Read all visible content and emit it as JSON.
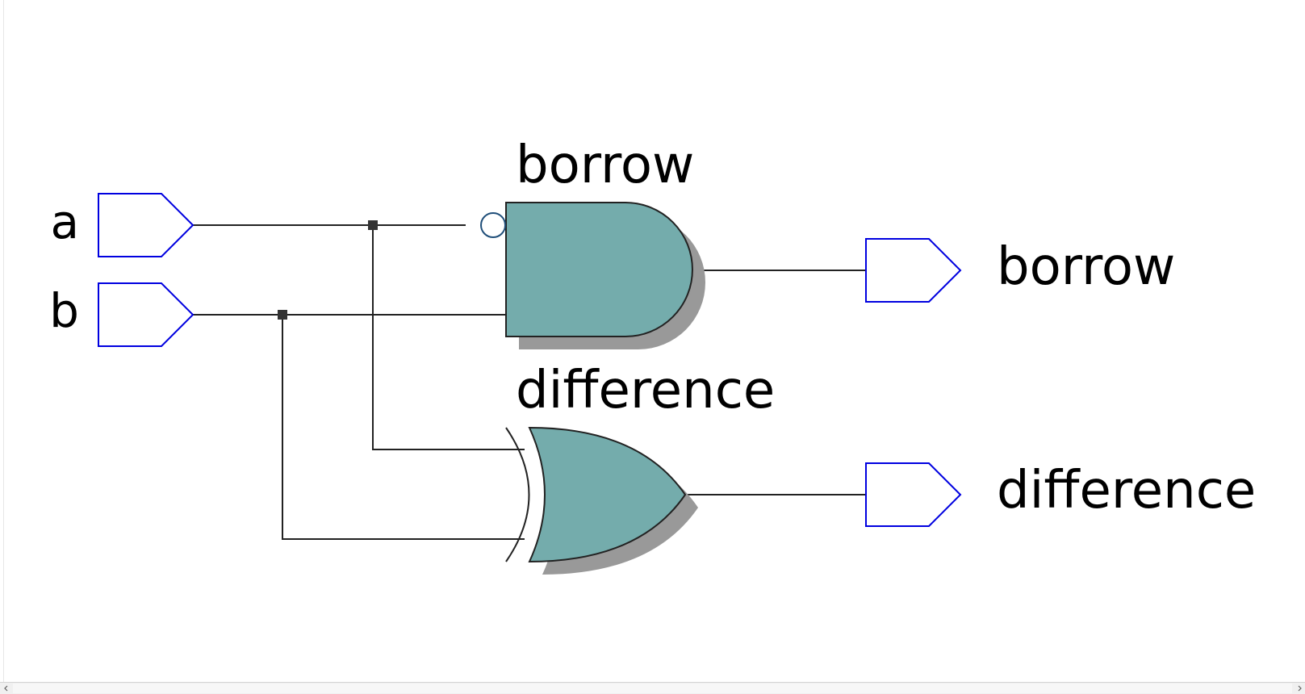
{
  "ports": {
    "inputs": [
      {
        "label": "a"
      },
      {
        "label": "b"
      }
    ],
    "outputs": [
      {
        "label": "borrow"
      },
      {
        "label": "difference"
      }
    ]
  },
  "gates": {
    "borrow_gate": {
      "label": "borrow",
      "kind": "AND",
      "inverted_input": "a"
    },
    "difference_gate": {
      "label": "difference",
      "kind": "XOR"
    }
  },
  "colors": {
    "gate_fill": "#74acac",
    "gate_shadow": "#999999",
    "port_outline": "#0000e0",
    "wire": "#222222",
    "inversion_bubble": "#1f4e79"
  }
}
